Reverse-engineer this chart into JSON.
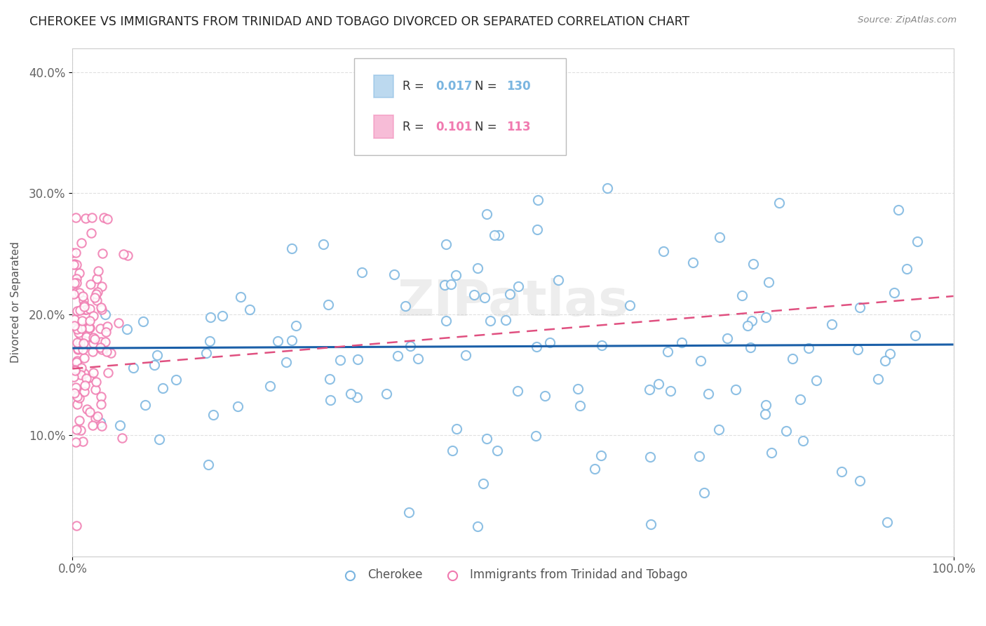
{
  "title": "CHEROKEE VS IMMIGRANTS FROM TRINIDAD AND TOBAGO DIVORCED OR SEPARATED CORRELATION CHART",
  "source": "Source: ZipAtlas.com",
  "ylabel": "Divorced or Separated",
  "xlim": [
    0.0,
    1.0
  ],
  "ylim": [
    0.0,
    0.42
  ],
  "xtick_positions": [
    0.0,
    1.0
  ],
  "xtick_labels": [
    "0.0%",
    "100.0%"
  ],
  "ytick_positions": [
    0.1,
    0.2,
    0.3,
    0.4
  ],
  "ytick_labels": [
    "10.0%",
    "20.0%",
    "30.0%",
    "40.0%"
  ],
  "cherokee_color": "#7ab5e0",
  "tt_color": "#f07ab0",
  "cherokee_line_color": "#1a5fa8",
  "tt_line_color": "#e05080",
  "watermark": "ZIPatlas",
  "background_color": "#ffffff",
  "grid_color": "#dddddd",
  "legend_box_color": "#aaaaaa",
  "cherokee_R": 0.017,
  "cherokee_N": 130,
  "tt_R": 0.101,
  "tt_N": 113
}
